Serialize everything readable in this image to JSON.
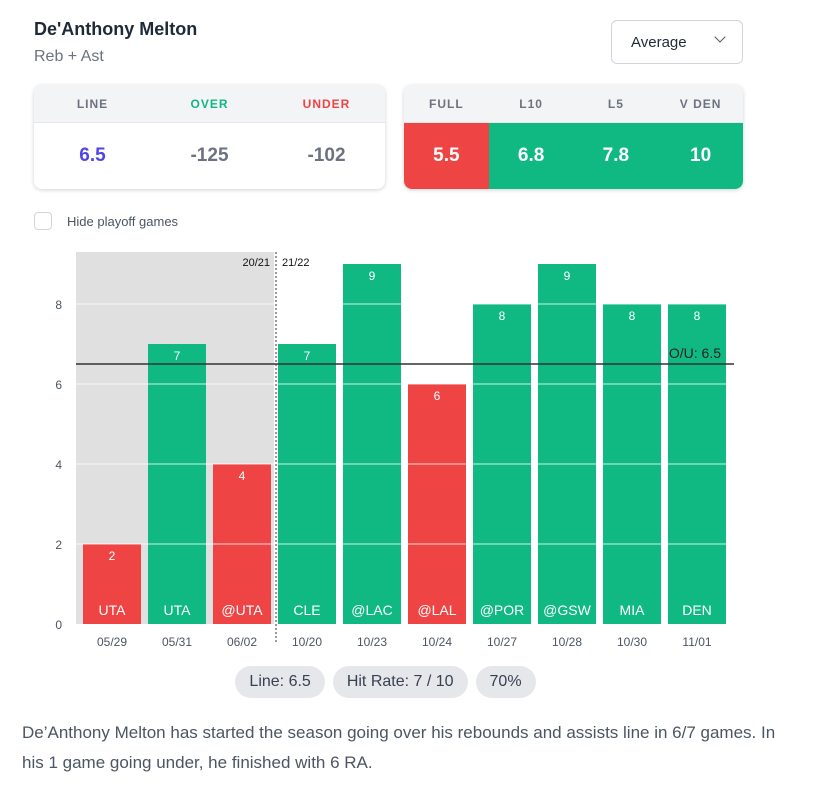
{
  "header": {
    "player": "De'Anthony Melton",
    "prop": "Reb + Ast"
  },
  "dropdown": {
    "selected": "Average",
    "icon": "chevron-down-icon"
  },
  "odds": {
    "headers": [
      {
        "label": "LINE",
        "color": "#6b7280"
      },
      {
        "label": "OVER",
        "color": "#10b981"
      },
      {
        "label": "UNDER",
        "color": "#ef4444"
      }
    ],
    "values": [
      {
        "value": "6.5",
        "color": "#4f46e5"
      },
      {
        "value": "-125",
        "color": "#6b7280"
      },
      {
        "value": "-102",
        "color": "#6b7280"
      }
    ]
  },
  "averages": {
    "headers": [
      "FULL",
      "L10",
      "L5",
      "V DEN"
    ],
    "values": [
      {
        "value": "5.5",
        "status": "under"
      },
      {
        "value": "6.8",
        "status": "over"
      },
      {
        "value": "7.8",
        "status": "over"
      },
      {
        "value": "10",
        "status": "over"
      }
    ]
  },
  "filter": {
    "hide_playoffs_label": "Hide playoff games",
    "checked": false
  },
  "colors": {
    "over": "#10b981",
    "under": "#ef4444",
    "playoff_bg": "#e0e0e0"
  },
  "chart_data": {
    "type": "bar",
    "categories": [
      "05/29",
      "05/31",
      "06/02",
      "10/20",
      "10/23",
      "10/24",
      "10/27",
      "10/28",
      "10/30",
      "11/01"
    ],
    "opponents": [
      "UTA",
      "UTA",
      "@UTA",
      "CLE",
      "@LAC",
      "@LAL",
      "@POR",
      "@GSW",
      "MIA",
      "DEN"
    ],
    "values": [
      2,
      7,
      4,
      7,
      9,
      6,
      8,
      9,
      8,
      8
    ],
    "playoff_count": 3,
    "line": 6.5,
    "line_label": "O/U: 6.5",
    "season_labels": [
      "20/21",
      "21/22"
    ],
    "yticks": [
      0,
      2,
      4,
      6,
      8
    ],
    "ylim": [
      0,
      9.3
    ],
    "grid": true
  },
  "pills": [
    "Line: 6.5",
    "Hit Rate: 7 / 10",
    "70%"
  ],
  "summary": "De’Anthony Melton has started the season going over his rebounds and assists line in 6/7 games. In his 1 game going under, he finished with 6 RA."
}
